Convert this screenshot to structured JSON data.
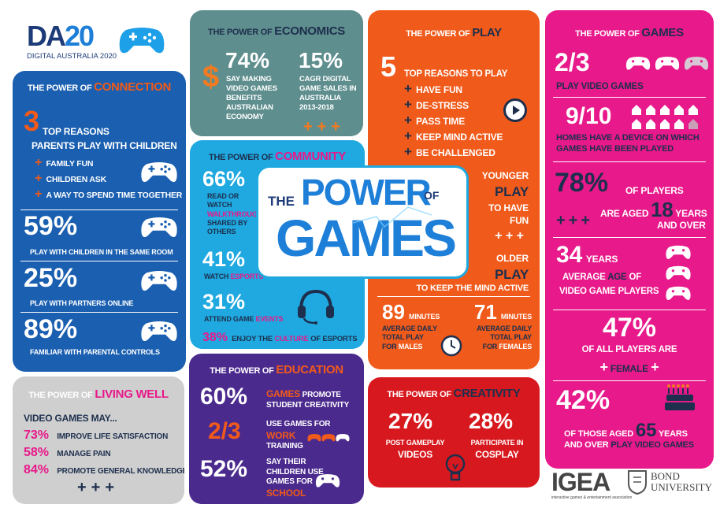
{
  "logo": {
    "da": "DA",
    "num": "20",
    "sub": "DIGITAL AUSTRALIA 2020"
  },
  "colors": {
    "blue": "#1a5fb0",
    "teal": "#5f8e8e",
    "cyan": "#1fa9e0",
    "orange": "#f05a1a",
    "pink": "#e8198a",
    "grey": "#cfcfcf",
    "purple": "#4b2a8e",
    "red": "#d7191f",
    "navy": "#1d3b78"
  },
  "economics": {
    "title_pre": "THE POWER OF",
    "title": "ECONOMICS",
    "icon": "dollar-icon",
    "stat1": "74%",
    "text1": "SAY MAKING VIDEO GAMES BENEFITS AUSTRALIAN ECONOMY",
    "stat2": "15%",
    "text2": "CAGR DIGITAL GAME SALES IN AUSTRALIA 2013-2018",
    "plus": "+++"
  },
  "connection": {
    "title_pre": "THE POWER OF",
    "title": "CONNECTION",
    "big": "3",
    "reasons_title": "TOP REASONS",
    "reasons_sub": "PARENTS PLAY WITH CHILDREN",
    "items": [
      "FAMILY FUN",
      "CHILDREN ASK",
      "A WAY TO SPEND TIME TOGETHER"
    ],
    "stats": [
      {
        "value": "59%",
        "text": "PLAY WITH CHILDREN IN THE SAME ROOM"
      },
      {
        "value": "25%",
        "text": "PLAY WITH PARTNERS ONLINE"
      },
      {
        "value": "89%",
        "text": "FAMILIAR WITH PARENTAL CONTROLS"
      }
    ]
  },
  "community": {
    "title_pre": "THE POWER OF",
    "title": "COMMUNITY",
    "s1": "66%",
    "t1a": "READ OR WATCH",
    "t1b": "WALKTHROUGHS",
    "t1c": "SHARED BY OTHERS",
    "s2": "41%",
    "t2a": "WATCH",
    "t2b": "ESPORTS",
    "s3": "31%",
    "t3a": "ATTEND GAME",
    "t3b": "EVENTS",
    "s4": "38%",
    "t4a": "ENJOY THE",
    "t4b": "CULTURE",
    "t4c": "OF ESPORTS"
  },
  "center": {
    "the": "THE",
    "power": "POWER",
    "of": "OF",
    "games": "GAMES"
  },
  "play": {
    "title_pre": "THE POWER OF",
    "title": "PLAY",
    "big": "5",
    "reasons_title": "TOP REASONS TO PLAY",
    "items": [
      "HAVE FUN",
      "DE-STRESS",
      "PASS TIME",
      "KEEP MIND ACTIVE",
      "BE CHALLENGED"
    ],
    "younger_a": "YOUNGER",
    "younger_b": "PLAY",
    "younger_c": "TO HAVE",
    "younger_d": "FUN",
    "plus": "+ + +",
    "older_a": "OLDER",
    "older_b": "PLAY",
    "older_c": "TO KEEP THE MIND ACTIVE",
    "m_val": "89",
    "m_unit": "MINUTES",
    "m_text": "AVERAGE DAILY TOTAL PLAY FOR",
    "m_who": "MALES",
    "f_val": "71",
    "f_unit": "MINUTES",
    "f_text": "AVERAGE DAILY TOTAL PLAY FOR",
    "f_who": "FEMALES"
  },
  "games": {
    "title_pre": "THE POWER OF",
    "title": "GAMES",
    "s1": "2/3",
    "t1": "PLAY VIDEO GAMES",
    "s2": "9/10",
    "t2": "HOMES HAVE A DEVICE ON WHICH GAMES HAVE BEEN PLAYED",
    "s3": "78%",
    "t3a": "OF PLAYERS",
    "t3b": "ARE AGED",
    "t3c": "18",
    "t3d": "YEARS",
    "t3e": "AND OVER",
    "plus": "+++",
    "s4": "34",
    "t4a": "YEARS",
    "t4b": "AVERAGE",
    "t4c": "AGE",
    "t4d": "OF",
    "t4e": "VIDEO GAME PLAYERS",
    "s5": "47%",
    "t5a": "OF ALL PLAYERS ARE",
    "t5b": "FEMALE",
    "s6": "42%",
    "t6a": "OF THOSE AGED",
    "t6b": "65",
    "t6c": "YEARS",
    "t6d": "AND OVER",
    "t6e": "PLAY VIDEO GAMES"
  },
  "living": {
    "title_pre": "THE POWER OF",
    "title": "LIVING WELL",
    "intro": "VIDEO GAMES MAY...",
    "items": [
      {
        "value": "73%",
        "text": "IMPROVE LIFE SATISFACTION"
      },
      {
        "value": "58%",
        "text": "MANAGE PAIN"
      },
      {
        "value": "84%",
        "text": "PROMOTE GENERAL KNOWLEDGE"
      }
    ],
    "plus": "+++"
  },
  "education": {
    "title_pre": "THE POWER OF",
    "title": "EDUCATION",
    "s1": "60%",
    "t1a": "GAMES",
    "t1b": "PROMOTE STUDENT CREATIVITY",
    "s2": "2/3",
    "t2a": "USE GAMES FOR",
    "t2b": "WORK",
    "t2c": "TRAINING",
    "s3": "52%",
    "t3a": "SAY THEIR CHILDREN USE GAMES FOR",
    "t3b": "SCHOOL"
  },
  "creativity": {
    "title_pre": "THE POWER OF",
    "title": "CREATIVITY",
    "s1": "27%",
    "t1a": "POST GAMEPLAY",
    "t1b": "VIDEOS",
    "s2": "28%",
    "t2a": "PARTICIPATE IN",
    "t2b": "COSPLAY"
  },
  "footer": {
    "igea": "IGEA",
    "igea_sub": "interactive games & entertainment association",
    "bond_a": "BOND",
    "bond_b": "UNIVERSITY"
  }
}
